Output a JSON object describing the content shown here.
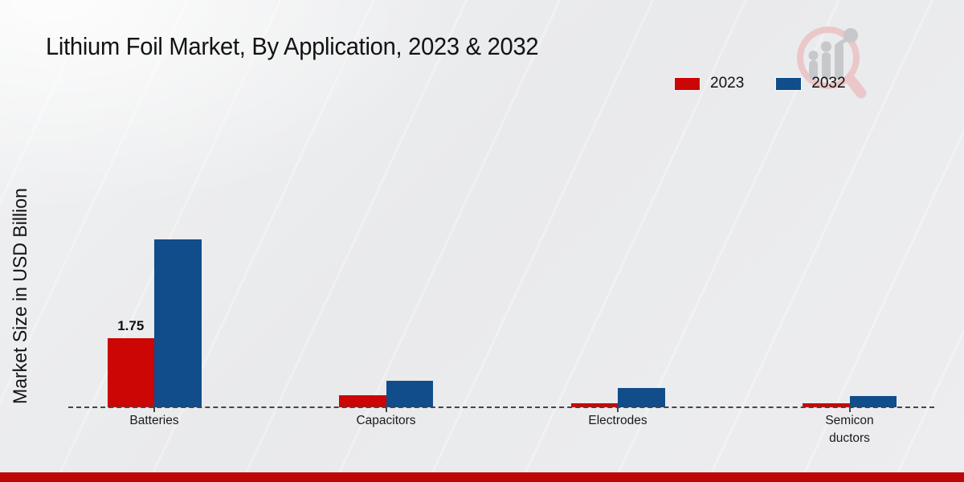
{
  "chart_data": {
    "type": "bar",
    "title": "Lithium Foil Market, By Application, 2023 & 2032",
    "ylabel": "Market Size in USD Billion",
    "xlabel": "",
    "categories": [
      "Batteries",
      "Capacitors",
      "Electrodes",
      "Semiconductors"
    ],
    "category_label_lines": [
      [
        "Batteries"
      ],
      [
        "Capacitors"
      ],
      [
        "Electrodes"
      ],
      [
        "Semicon",
        "ductors"
      ]
    ],
    "series": [
      {
        "name": "2023",
        "color": "#cc0505",
        "values": [
          1.75,
          0.3,
          0.1,
          0.1
        ]
      },
      {
        "name": "2032",
        "color": "#114c8b",
        "values": [
          4.25,
          0.67,
          0.49,
          0.28
        ]
      }
    ],
    "data_labels": [
      {
        "series": "2023",
        "category": "Batteries",
        "text": "1.75"
      }
    ],
    "ylim": [
      0,
      4.6
    ],
    "grid": false,
    "y_ticks_visible": false,
    "baseline_style": "dashed",
    "legend_position": "top-right"
  },
  "branding": {
    "logo_icon": "magnifier-growth-chart-logo",
    "logo_ring_color": "#ebc7c9",
    "logo_bar_color": "#c7c8cb"
  },
  "footer": {
    "accent_color": "#bf0606"
  }
}
